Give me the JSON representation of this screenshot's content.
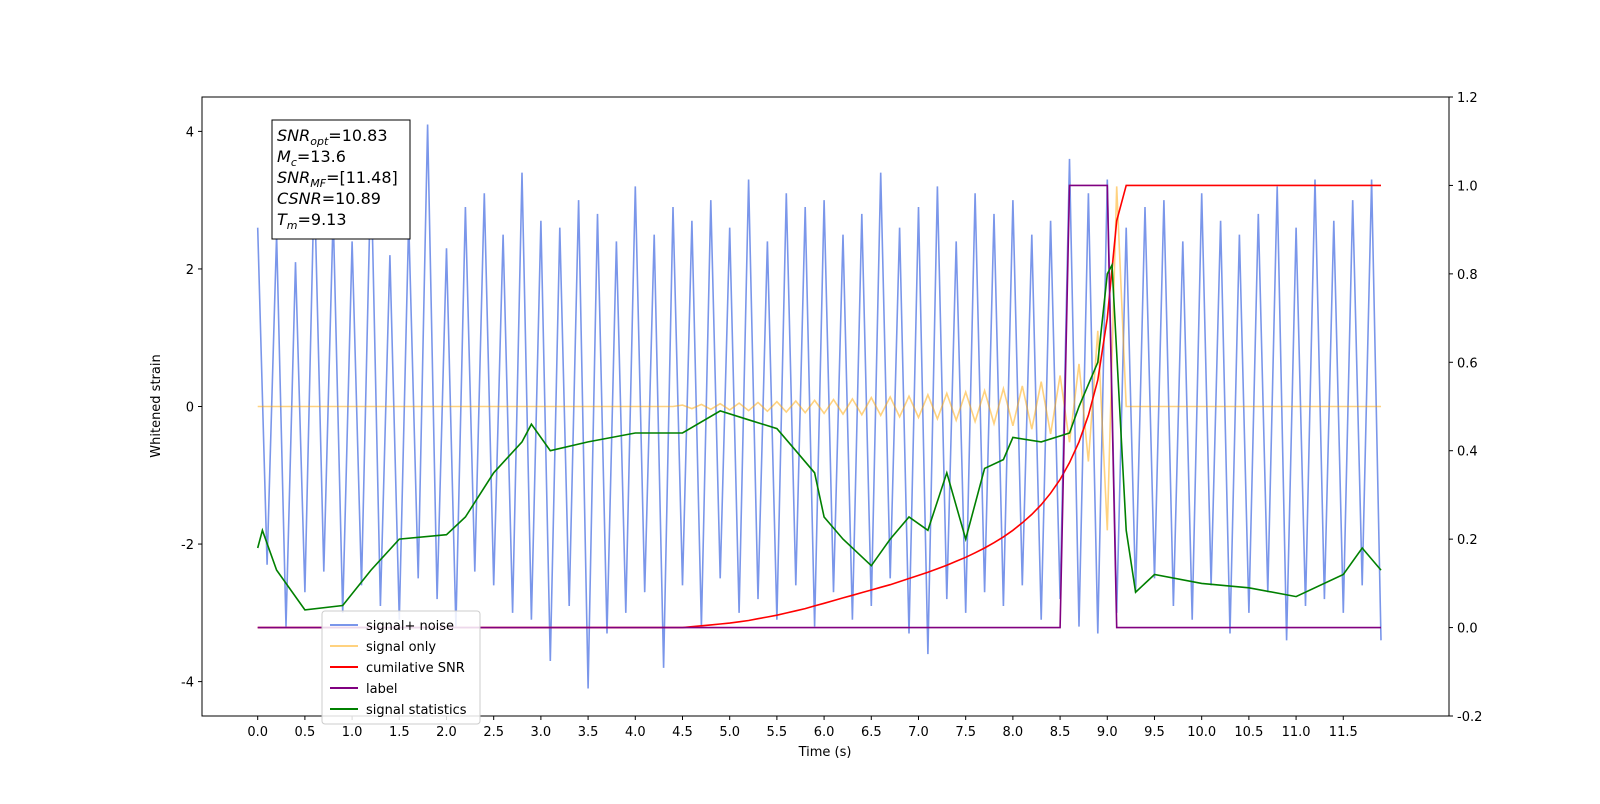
{
  "chart_data": {
    "type": "line",
    "xlabel": "Time (s)",
    "ylabel": "Whitened strain",
    "xlim": [
      -0.59,
      12.62
    ],
    "ylim": [
      -4.5,
      4.5
    ],
    "y2lim": [
      -0.2,
      1.2
    ],
    "xticks": [
      {
        "value": 0,
        "label": "0.0"
      },
      {
        "value": 0.5,
        "label": "0.5"
      },
      {
        "value": 1,
        "label": "1.0"
      },
      {
        "value": 1.5,
        "label": "1.5"
      },
      {
        "value": 2,
        "label": "2.0"
      },
      {
        "value": 2.5,
        "label": "2.5"
      },
      {
        "value": 3,
        "label": "3.0"
      },
      {
        "value": 3.5,
        "label": "3.5"
      },
      {
        "value": 4,
        "label": "4.0"
      },
      {
        "value": 4.5,
        "label": "4.5"
      },
      {
        "value": 5,
        "label": "5.0"
      },
      {
        "value": 5.5,
        "label": "5.5"
      },
      {
        "value": 6,
        "label": "6.0"
      },
      {
        "value": 6.5,
        "label": "6.5"
      },
      {
        "value": 7,
        "label": "7.0"
      },
      {
        "value": 7.5,
        "label": "7.5"
      },
      {
        "value": 8,
        "label": "8.0"
      },
      {
        "value": 8.5,
        "label": "8.5"
      },
      {
        "value": 9,
        "label": "9.0"
      },
      {
        "value": 9.5,
        "label": "9.5"
      },
      {
        "value": 10,
        "label": "10.0"
      },
      {
        "value": 10.5,
        "label": "10.5"
      },
      {
        "value": 11,
        "label": "11.0"
      },
      {
        "value": 11.5,
        "label": "11.5"
      }
    ],
    "yticks": [
      -4,
      -2,
      0,
      2,
      4
    ],
    "y2ticks": [
      -0.2,
      {
        "value": 0,
        "label": "0.0"
      },
      0.2,
      0.4,
      0.6,
      0.8,
      {
        "value": 1,
        "label": "1.0"
      },
      1.2
    ],
    "legend_loc": "lower left",
    "annotations": [
      {
        "main": "SNR",
        "sub": "opt",
        "rest": "=10.83"
      },
      {
        "main": "M",
        "sub": "c",
        "rest": "=13.6"
      },
      {
        "main": "SNR",
        "sub": "MF",
        "rest": "=[11.48]"
      },
      {
        "main": "CSNR",
        "sub": null,
        "rest": "=10.89"
      },
      {
        "main": "T",
        "sub": "m",
        "rest": "=9.13"
      }
    ],
    "x": [
      0,
      0.1,
      0.2,
      0.3,
      0.4,
      0.5,
      0.6,
      0.7,
      0.8,
      0.9,
      1,
      1.1,
      1.2,
      1.3,
      1.4,
      1.5,
      1.6,
      1.7,
      1.8,
      1.9,
      2,
      2.1,
      2.2,
      2.3,
      2.4,
      2.5,
      2.6,
      2.7,
      2.8,
      2.9,
      3,
      3.1,
      3.2,
      3.3,
      3.4,
      3.5,
      3.6,
      3.7,
      3.8,
      3.9,
      4,
      4.1,
      4.2,
      4.3,
      4.4,
      4.5,
      4.6,
      4.7,
      4.8,
      4.9,
      5,
      5.1,
      5.2,
      5.3,
      5.4,
      5.5,
      5.6,
      5.7,
      5.8,
      5.9,
      6,
      6.1,
      6.2,
      6.3,
      6.4,
      6.5,
      6.6,
      6.7,
      6.8,
      6.9,
      7,
      7.1,
      7.2,
      7.3,
      7.4,
      7.5,
      7.6,
      7.7,
      7.8,
      7.9,
      8,
      8.1,
      8.2,
      8.3,
      8.4,
      8.5,
      8.6,
      8.7,
      8.8,
      8.9,
      9,
      9.1,
      9.2,
      9.3,
      9.4,
      9.5,
      9.6,
      9.7,
      9.8,
      9.9,
      10,
      10.1,
      10.2,
      10.3,
      10.4,
      10.5,
      10.6,
      10.7,
      10.8,
      10.9,
      11,
      11.1,
      11.2,
      11.3,
      11.4,
      11.5,
      11.6,
      11.7,
      11.8,
      11.9
    ],
    "series": [
      {
        "name": "signal+ noise",
        "color": "#4169e1",
        "alpha": 0.7,
        "axis": "y",
        "values": [
          2.6,
          -2.3,
          2.5,
          -3.2,
          2.1,
          -2.7,
          3.3,
          -2.4,
          2.8,
          -3.0,
          2.4,
          -2.6,
          3.5,
          -2.9,
          2.2,
          -3.1,
          2.7,
          -2.5,
          4.1,
          -2.8,
          2.3,
          -3.2,
          2.9,
          -2.4,
          3.1,
          -2.6,
          2.5,
          -3.0,
          3.4,
          -3.1,
          2.7,
          -3.7,
          2.6,
          -2.9,
          3.0,
          -4.1,
          2.8,
          -3.3,
          2.4,
          -3.0,
          3.2,
          -2.7,
          2.5,
          -3.8,
          2.9,
          -2.6,
          2.7,
          -3.2,
          3.0,
          -2.5,
          2.6,
          -3.0,
          3.3,
          -2.8,
          2.4,
          -3.1,
          3.1,
          -2.6,
          2.9,
          -3.2,
          3.0,
          -2.7,
          2.5,
          -3.1,
          2.8,
          -2.9,
          3.4,
          -2.5,
          2.6,
          -3.3,
          2.9,
          -3.6,
          3.2,
          -2.8,
          2.4,
          -3.0,
          3.1,
          -2.7,
          2.8,
          -2.9,
          3.0,
          -2.6,
          2.5,
          -3.1,
          2.7,
          -2.8,
          3.6,
          -3.2,
          3.1,
          -3.3,
          3.3,
          -3.0,
          2.6,
          -2.7,
          2.9,
          -2.5,
          3.0,
          -2.9,
          2.4,
          -3.1,
          3.1,
          -2.6,
          2.7,
          -3.3,
          2.5,
          -3.0,
          2.8,
          -2.7,
          3.2,
          -3.4,
          2.6,
          -2.9,
          3.3,
          -2.8,
          2.7,
          -3.0,
          3.0,
          -2.6,
          3.3,
          -3.4
        ]
      },
      {
        "name": "signal only",
        "color": "#ffa500",
        "alpha": 0.5,
        "axis": "y",
        "values": [
          0,
          0,
          0,
          0,
          0,
          0,
          0,
          0,
          0,
          0,
          0,
          0,
          0,
          0,
          0,
          0,
          0,
          0,
          0,
          0,
          0,
          0,
          0,
          0,
          0,
          0,
          0,
          0,
          0,
          0,
          0,
          0,
          0,
          0,
          0,
          0,
          0,
          0,
          0,
          0,
          0,
          0,
          0,
          0,
          0,
          0.02,
          -0.03,
          0.03,
          -0.04,
          0.04,
          -0.05,
          0.05,
          -0.06,
          0.06,
          -0.07,
          0.07,
          -0.08,
          0.08,
          -0.09,
          0.09,
          -0.1,
          0.1,
          -0.11,
          0.11,
          -0.12,
          0.13,
          -0.13,
          0.14,
          -0.15,
          0.15,
          -0.16,
          0.17,
          -0.18,
          0.19,
          -0.2,
          0.21,
          -0.22,
          0.23,
          -0.25,
          0.26,
          -0.28,
          0.3,
          -0.33,
          0.36,
          -0.4,
          0.45,
          -0.52,
          0.62,
          -0.8,
          1.1,
          -1.8,
          3.2,
          0,
          0,
          0,
          0,
          0,
          0,
          0,
          0,
          0,
          0,
          0,
          0,
          0,
          0,
          0,
          0,
          0,
          0,
          0,
          0,
          0,
          0,
          0,
          0,
          0,
          0,
          0,
          0
        ]
      },
      {
        "name": "cumilative SNR",
        "color": "#ff0000",
        "alpha": 1,
        "axis": "y2",
        "values": [
          0,
          0,
          0,
          0,
          0,
          0,
          0,
          0,
          0,
          0,
          0,
          0,
          0,
          0,
          0,
          0,
          0,
          0,
          0,
          0,
          0,
          0,
          0,
          0,
          0,
          0,
          0,
          0,
          0,
          0,
          0,
          0,
          0,
          0,
          0,
          0,
          0,
          0,
          0,
          0,
          0,
          0,
          0,
          0,
          0,
          0,
          0.002,
          0.004,
          0.006,
          0.008,
          0.01,
          0.013,
          0.016,
          0.02,
          0.024,
          0.028,
          0.033,
          0.038,
          0.043,
          0.049,
          0.055,
          0.061,
          0.067,
          0.073,
          0.079,
          0.085,
          0.091,
          0.097,
          0.104,
          0.111,
          0.118,
          0.125,
          0.133,
          0.141,
          0.15,
          0.159,
          0.169,
          0.18,
          0.192,
          0.205,
          0.22,
          0.237,
          0.256,
          0.278,
          0.304,
          0.335,
          0.373,
          0.42,
          0.48,
          0.56,
          0.7,
          0.92,
          1,
          1,
          1,
          1,
          1,
          1,
          1,
          1,
          1,
          1,
          1,
          1,
          1,
          1,
          1,
          1,
          1,
          1,
          1,
          1,
          1,
          1,
          1,
          1,
          1,
          1,
          1,
          1
        ]
      },
      {
        "name": "label",
        "color": "#800080",
        "alpha": 1,
        "axis": "y2",
        "values": [
          0,
          0,
          0,
          0,
          0,
          0,
          0,
          0,
          0,
          0,
          0,
          0,
          0,
          0,
          0,
          0,
          0,
          0,
          0,
          0,
          0,
          0,
          0,
          0,
          0,
          0,
          0,
          0,
          0,
          0,
          0,
          0,
          0,
          0,
          0,
          0,
          0,
          0,
          0,
          0,
          0,
          0,
          0,
          0,
          0,
          0,
          0,
          0,
          0,
          0,
          0,
          0,
          0,
          0,
          0,
          0,
          0,
          0,
          0,
          0,
          0,
          0,
          0,
          0,
          0,
          0,
          0,
          0,
          0,
          0,
          0,
          0,
          0,
          0,
          0,
          0,
          0,
          0,
          0,
          0,
          0,
          0,
          0,
          0,
          0,
          0,
          1,
          1,
          1,
          1,
          1,
          0,
          0,
          0,
          0,
          0,
          0,
          0,
          0,
          0,
          0,
          0,
          0,
          0,
          0,
          0,
          0,
          0,
          0,
          0,
          0,
          0,
          0,
          0,
          0,
          0,
          0,
          0,
          0,
          0
        ]
      },
      {
        "name": "signal statistics",
        "color": "#008000",
        "alpha": 1,
        "axis": "y2",
        "x": [
          0,
          0.05,
          0.2,
          0.5,
          0.9,
          1.2,
          1.5,
          2.0,
          2.2,
          2.5,
          2.8,
          2.9,
          3.1,
          3.5,
          4.0,
          4.5,
          4.9,
          5.2,
          5.5,
          5.7,
          5.9,
          6.0,
          6.2,
          6.5,
          6.7,
          6.9,
          7.1,
          7.3,
          7.5,
          7.7,
          7.9,
          8.0,
          8.3,
          8.6,
          8.7,
          8.9,
          9.0,
          9.05,
          9.2,
          9.3,
          9.5,
          10.0,
          10.5,
          11.0,
          11.5,
          11.7,
          11.9
        ],
        "values": [
          0.18,
          0.22,
          0.13,
          0.04,
          0.05,
          0.13,
          0.2,
          0.21,
          0.25,
          0.35,
          0.42,
          0.46,
          0.4,
          0.42,
          0.44,
          0.44,
          0.49,
          0.47,
          0.45,
          0.4,
          0.35,
          0.25,
          0.2,
          0.14,
          0.2,
          0.25,
          0.22,
          0.35,
          0.2,
          0.36,
          0.38,
          0.43,
          0.42,
          0.44,
          0.5,
          0.6,
          0.8,
          0.82,
          0.22,
          0.08,
          0.12,
          0.1,
          0.09,
          0.07,
          0.12,
          0.18,
          0.13
        ]
      }
    ]
  }
}
